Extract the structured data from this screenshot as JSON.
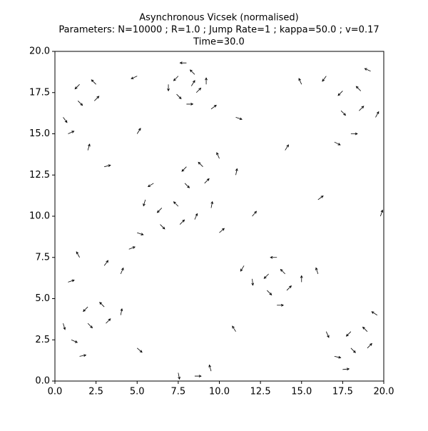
{
  "chart_data": {
    "type": "quiver",
    "title": "Asynchronous Vicsek (normalised)",
    "subtitle": "Parameters: N=10000 ; R=1.0 ; Jump Rate=1 ; kappa=50.0 ; v=0.17",
    "annotation": "Time=30.0",
    "color": "#000000",
    "xlim": [
      0,
      20
    ],
    "ylim": [
      0,
      20
    ],
    "xticks": [
      {
        "value": 0,
        "label": "0.0"
      },
      2.5,
      {
        "value": 5,
        "label": "5.0"
      },
      7.5,
      {
        "value": 10,
        "label": "10.0"
      },
      12.5,
      {
        "value": 15,
        "label": "15.0"
      },
      17.5,
      {
        "value": 20,
        "label": "20.0"
      }
    ],
    "yticks": [
      {
        "value": 0,
        "label": "0.0"
      },
      2.5,
      {
        "value": 5,
        "label": "5.0"
      },
      7.5,
      {
        "value": 10,
        "label": "10.0"
      },
      12.5,
      {
        "value": 15,
        "label": "15.0"
      },
      17.5,
      {
        "value": 20,
        "label": "20.0"
      }
    ],
    "x": [
      7.5,
      8.5,
      8.6,
      7.4,
      8,
      8,
      6.9,
      9.2,
      8.3,
      9.5,
      1.5,
      2.5,
      2.4,
      1.4,
      0.5,
      0.8,
      2,
      3,
      17.5,
      18.6,
      18.5,
      17.4,
      19.5,
      16.5,
      18,
      19.2,
      17,
      8,
      9,
      9.1,
      7.9,
      10,
      11,
      6.5,
      7.5,
      7.6,
      6.4,
      5.5,
      8.5,
      9.5,
      5,
      4.5,
      10,
      6,
      13,
      14,
      14.1,
      12.9,
      12,
      15,
      13.5,
      13.5,
      16,
      11.5,
      2,
      3,
      3.1,
      2,
      1,
      0.5,
      4,
      1.5,
      3,
      1.5,
      0.8,
      4,
      18,
      19,
      19,
      18,
      17,
      16.5,
      19.6,
      17.5,
      7.5,
      8.5,
      9.5,
      5,
      11,
      14,
      15,
      5,
      12,
      16,
      5,
      11,
      19.8
    ],
    "y": [
      18.5,
      18.6,
      17.5,
      17.4,
      19.3,
      16.8,
      18,
      18,
      17.9,
      16.5,
      18,
      18,
      17,
      17,
      16,
      15,
      14,
      13,
      17.6,
      17.6,
      16.4,
      16.4,
      16,
      18.5,
      15,
      18.8,
      14.5,
      13,
      13,
      12,
      12,
      13.5,
      12.5,
      10.5,
      10.6,
      9.5,
      9.5,
      11,
      9.8,
      10.5,
      9,
      8,
      9,
      12,
      6.5,
      6.5,
      5.5,
      5.5,
      6.2,
      6,
      7.5,
      4.6,
      6.5,
      7,
      4.5,
      4.5,
      3.5,
      3.5,
      2.5,
      3.5,
      4,
      1.5,
      7,
      7.5,
      6,
      6.5,
      3,
      3,
      2,
      2,
      1.5,
      3,
      4,
      0.7,
      0.5,
      0.3,
      0.6,
      15,
      16,
      14,
      18,
      18.5,
      10,
      11,
      2,
      3,
      10
    ],
    "u": [
      -0.7,
      -0.7,
      0.7,
      0.7,
      -1,
      1,
      0,
      0,
      0.5,
      0.8,
      -0.7,
      -0.7,
      0.7,
      0.7,
      0.6,
      0.9,
      0.3,
      0.8,
      -0.7,
      -0.7,
      0.7,
      0.7,
      0.5,
      -0.6,
      1,
      -0.9,
      0.8,
      -0.7,
      -0.7,
      0.7,
      0.7,
      -0.4,
      0.2,
      -0.7,
      -0.7,
      0.7,
      0.7,
      -0.3,
      0.4,
      0.2,
      0.9,
      0.8,
      0.7,
      -0.8,
      -0.7,
      -0.7,
      0.7,
      0.7,
      0.1,
      0,
      -1,
      1,
      -0.3,
      -0.5,
      -0.7,
      -0.7,
      0.7,
      0.7,
      0.9,
      0.3,
      0.2,
      1,
      0.6,
      -0.5,
      0.9,
      0.4,
      -0.7,
      -0.7,
      0.7,
      0.7,
      0.9,
      0.4,
      -0.8,
      1,
      0.2,
      1,
      -0.3,
      0.5,
      0.9,
      0.5,
      -0.4,
      -0.9,
      0.6,
      0.8,
      0.7,
      -0.5,
      0.3
    ],
    "v": [
      -0.7,
      0.7,
      0.7,
      -0.7,
      0,
      0,
      -1,
      1,
      0.8,
      0.6,
      -0.7,
      0.7,
      0.7,
      -0.7,
      -0.8,
      0.4,
      1,
      0.2,
      -0.7,
      0.7,
      0.7,
      -0.7,
      0.9,
      -0.8,
      0,
      0.4,
      -0.4,
      -0.7,
      0.7,
      0.7,
      -0.7,
      0.9,
      1,
      -0.7,
      0.7,
      0.7,
      -0.7,
      -1,
      0.9,
      1,
      -0.3,
      0.3,
      0.6,
      -0.5,
      -0.7,
      0.7,
      0.7,
      -0.7,
      -1,
      1,
      0,
      0,
      0.9,
      -0.8,
      -0.7,
      0.7,
      0.7,
      -0.7,
      -0.4,
      -1,
      1,
      0.2,
      0.8,
      0.9,
      0.3,
      0.9,
      -0.7,
      0.7,
      0.7,
      -0.7,
      -0.2,
      -0.9,
      0.5,
      0.1,
      -1,
      0,
      1,
      0.8,
      -0.3,
      0.8,
      0.9,
      -0.4,
      0.7,
      0.6,
      -0.6,
      0.8,
      0.9
    ]
  }
}
